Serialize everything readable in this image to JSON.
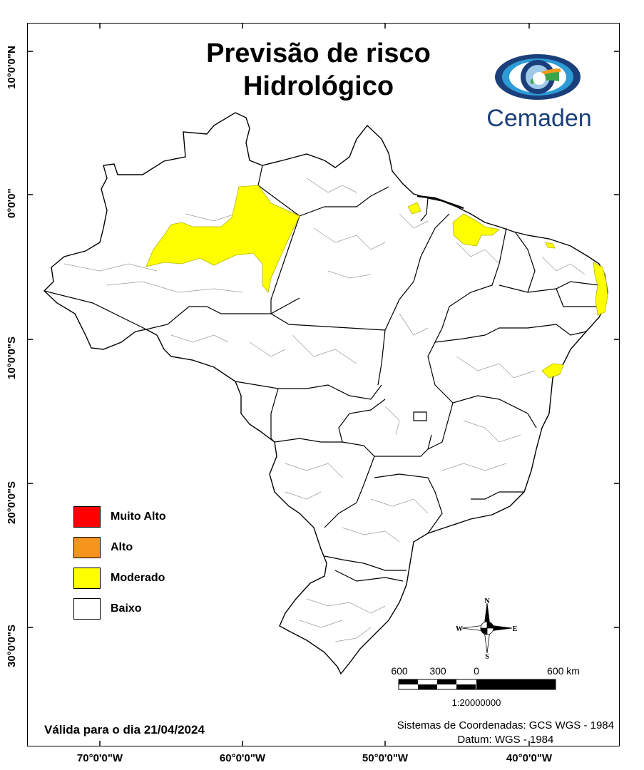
{
  "title": {
    "line1": "Previsão de risco",
    "line2": "Hidrológico"
  },
  "logo": {
    "name": "Cemaden",
    "colors": {
      "blue": "#1b3f7a",
      "lightblue": "#2c9bd6",
      "green": "#3aa648",
      "orange": "#f29a1f"
    }
  },
  "legend": {
    "items": [
      {
        "label": "Muito Alto",
        "color": "#ff0000"
      },
      {
        "label": "Alto",
        "color": "#f7941d"
      },
      {
        "label": "Moderado",
        "color": "#ffff00"
      },
      {
        "label": "Baixo",
        "color": "#ffffff"
      }
    ]
  },
  "axes": {
    "longitude": [
      "70°0'0\"W",
      "60°0'0\"W",
      "50°0'0\"W",
      "40°0'0\"W"
    ],
    "latitude": [
      "10°0'0\"N",
      "0°0'0\"",
      "10°0'0\"S",
      "20°0'0\"S",
      "30°0'0\"S"
    ]
  },
  "validity": "Válida para o dia 21/04/2024",
  "coordinate_system": {
    "line1": "Sistemas de Coordenadas: GCS WGS - 1984",
    "line2": "Datum: WGS - 1984"
  },
  "scale_bar": {
    "labels": [
      "600",
      "300",
      "0",
      "600 km"
    ],
    "ratio": "1:20000000"
  },
  "compass": {
    "n": "N",
    "s": "S",
    "e": "E",
    "w": "W"
  },
  "map": {
    "base_fill": "#ffffff",
    "risk_fill_moderado": "#ffff00",
    "border": "#000000"
  }
}
